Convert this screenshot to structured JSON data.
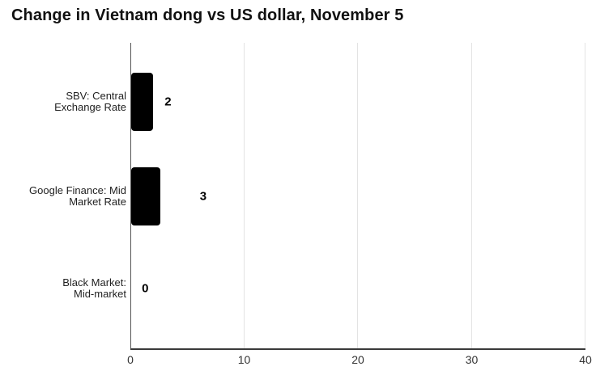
{
  "header": {
    "title": "Change in Vietnam dong vs US dollar, November 5"
  },
  "chart_data": {
    "type": "bar",
    "orientation": "horizontal",
    "title": "Change in Vietnam dong vs US dollar, November 5",
    "categories": [
      "SBV: Central Exchange Rate",
      "Google Finance: Mid Market Rate",
      "Black Market: Mid-market"
    ],
    "category_label_lines": [
      [
        "SBV: Central",
        "Exchange Rate"
      ],
      [
        "Google Finance: Mid",
        "Market Rate"
      ],
      [
        "Black Market:",
        "Mid-market"
      ]
    ],
    "values": [
      2,
      3,
      0
    ],
    "value_labels": [
      "2",
      "3",
      "0"
    ],
    "bar_extents_axis_units": [
      1.95,
      2.55,
      0
    ],
    "value_label_x_axis_units": [
      3.3,
      6.4,
      1.3
    ],
    "xlabel": "",
    "ylabel": "",
    "xlim": [
      0,
      40
    ],
    "xticks": [
      0,
      10,
      20,
      30,
      40
    ],
    "grid": "vertical",
    "legend": "none",
    "bar_color": "#000000",
    "axis_line_color": "#3a3a3a",
    "gridline_color": "#e3e3e3"
  }
}
